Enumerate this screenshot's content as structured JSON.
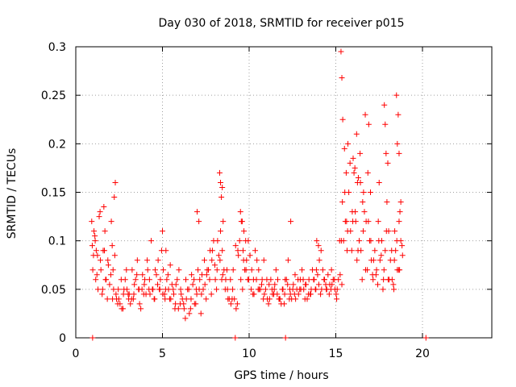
{
  "chart_data": {
    "type": "scatter",
    "title": "Day 030 of 2018, SRMTID for receiver p015",
    "xlabel": "GPS time / hours",
    "ylabel": "SRMTID / TECUs",
    "xlim": [
      0,
      24
    ],
    "ylim": [
      0,
      0.3
    ],
    "xticks": [
      0,
      5,
      10,
      15,
      20
    ],
    "yticks": [
      0,
      0.05,
      0.1,
      0.15,
      0.2,
      0.25,
      0.3
    ],
    "xtick_labels": [
      "0",
      "5",
      "10",
      "15",
      "20"
    ],
    "ytick_labels": [
      "0",
      "0.05",
      "0.1",
      "0.15",
      "0.2",
      "0.25",
      "0.3"
    ],
    "grid": true,
    "marker": "+",
    "series_color": "#ff0000",
    "series": [
      {
        "name": "SRMTID",
        "x": [
          0.95,
          1.05,
          1.15,
          1.25,
          1.35,
          1.45,
          1.55,
          1.65,
          1.75,
          1.85,
          1.95,
          2.05,
          2.15,
          2.25,
          2.35,
          2.45,
          2.55,
          2.65,
          2.75,
          2.85,
          2.95,
          3.05,
          3.15,
          3.25,
          3.35,
          3.45,
          3.55,
          3.65,
          3.75,
          3.85,
          3.95,
          4.05,
          4.15,
          4.25,
          4.35,
          4.45,
          4.55,
          4.65,
          4.75,
          4.85,
          4.95,
          5.05,
          5.15,
          5.25,
          5.35,
          5.45,
          5.55,
          5.65,
          5.75,
          5.85,
          5.95,
          6.05,
          6.15,
          6.25,
          6.35,
          6.45,
          6.55,
          6.65,
          6.75,
          6.85,
          6.95,
          7.05,
          7.15,
          7.25,
          7.35,
          7.45,
          7.55,
          7.65,
          7.75,
          7.85,
          7.95,
          8.05,
          8.15,
          8.25,
          8.35,
          8.45,
          8.55,
          8.65,
          8.75,
          8.85,
          8.95,
          9.05,
          9.15,
          9.25,
          9.35,
          9.45,
          9.55,
          9.65,
          9.75,
          9.85,
          9.95,
          10.05,
          10.15,
          10.25,
          10.35,
          10.45,
          10.55,
          10.65,
          10.75,
          10.85,
          10.95,
          11.05,
          11.15,
          11.25,
          11.35,
          11.45,
          11.55,
          11.65,
          11.75,
          11.85,
          11.95,
          12.05,
          12.15,
          12.25,
          12.35,
          12.45,
          12.55,
          12.65,
          12.75,
          12.85,
          12.95,
          13.05,
          13.15,
          13.25,
          13.35,
          13.45,
          13.55,
          13.65,
          13.75,
          13.85,
          13.95,
          14.05,
          14.15,
          14.25,
          14.35,
          14.45,
          14.55,
          14.65,
          14.75,
          14.85,
          14.95,
          15.05,
          15.15,
          15.25,
          15.35,
          15.45,
          15.55,
          15.65,
          15.75,
          15.85,
          15.95,
          16.05,
          16.15,
          16.25,
          16.35,
          16.45,
          16.55,
          16.65,
          16.75,
          16.85,
          16.95,
          17.05,
          17.15,
          17.25,
          17.35,
          17.45,
          17.55,
          17.65,
          17.75,
          17.85,
          17.95,
          18.05,
          18.15,
          18.25,
          18.35,
          18.45,
          18.55,
          18.65,
          18.75,
          18.85,
          0.98,
          1.12,
          1.28,
          1.42,
          1.58,
          1.72,
          1.88,
          2.02,
          2.18,
          2.32,
          2.48,
          2.62,
          2.78,
          2.92,
          3.08,
          3.22,
          3.38,
          3.52,
          3.68,
          3.82,
          3.98,
          4.12,
          4.28,
          4.42,
          4.58,
          4.72,
          4.88,
          5.02,
          5.18,
          5.32,
          5.48,
          5.62,
          5.78,
          5.92,
          6.08,
          6.22,
          6.38,
          6.52,
          6.68,
          6.82,
          6.98,
          7.12,
          7.28,
          7.42,
          7.58,
          7.72,
          7.88,
          8.02,
          8.18,
          8.32,
          8.48,
          8.62,
          8.78,
          8.92,
          9.08,
          9.22,
          9.38,
          9.52,
          9.68,
          9.82,
          9.98,
          10.12,
          10.28,
          10.42,
          10.58,
          10.72,
          10.88,
          11.02,
          11.18,
          11.32,
          11.48,
          11.62,
          11.78,
          11.92,
          12.08,
          12.22,
          12.38,
          12.52,
          12.68,
          12.82,
          12.98,
          13.12,
          13.28,
          13.42,
          13.58,
          13.72,
          13.88,
          14.02,
          14.18,
          14.32,
          14.48,
          14.62,
          14.78,
          14.92,
          15.08,
          15.22,
          15.38,
          15.52,
          15.68,
          15.82,
          15.98,
          16.12,
          16.28,
          16.42,
          16.58,
          16.72,
          16.88,
          17.02,
          17.18,
          17.32,
          17.48,
          17.62,
          17.78,
          17.92,
          18.08,
          18.22,
          18.38,
          18.52,
          18.68,
          18.82,
          1.02,
          1.22,
          1.52,
          1.82,
          2.12,
          2.42,
          2.72,
          3.02,
          3.32,
          3.62,
          3.92,
          4.22,
          4.52,
          4.82,
          5.12,
          5.42,
          5.72,
          6.02,
          6.32,
          6.62,
          6.92,
          7.22,
          7.52,
          7.82,
          8.12,
          8.42,
          8.72,
          9.02,
          9.32,
          9.62,
          9.92,
          10.22,
          10.52,
          10.82,
          11.12,
          11.42,
          11.72,
          12.02,
          12.32,
          12.62,
          12.92,
          13.22,
          13.52,
          13.82,
          14.12,
          14.42,
          14.72,
          15.02,
          15.32,
          15.62,
          15.92,
          16.22,
          16.52,
          16.82,
          17.12,
          17.42,
          17.72,
          18.02,
          18.32,
          18.62,
          0.92,
          1.1,
          1.18,
          1.4,
          1.62,
          1.68,
          2.1,
          2.22,
          2.28,
          5.0,
          5.2,
          7.0,
          7.1,
          8.3,
          8.35,
          8.4,
          8.45,
          8.5,
          9.5,
          9.6,
          9.7,
          9.8,
          12.4,
          13.9,
          14.0,
          15.3,
          15.35,
          15.4,
          15.5,
          15.6,
          15.7,
          16.0,
          16.1,
          16.2,
          16.3,
          16.4,
          16.6,
          16.7,
          16.9,
          17.0,
          17.5,
          17.8,
          17.85,
          17.9,
          18.0,
          18.4,
          18.5,
          18.55,
          18.6,
          18.65,
          18.7,
          18.75,
          0.97,
          9.2,
          12.1,
          20.2
        ],
        "y": [
          0.095,
          0.11,
          0.06,
          0.085,
          0.125,
          0.07,
          0.05,
          0.09,
          0.06,
          0.08,
          0.055,
          0.12,
          0.07,
          0.085,
          0.04,
          0.05,
          0.035,
          0.03,
          0.045,
          0.06,
          0.05,
          0.04,
          0.035,
          0.07,
          0.045,
          0.06,
          0.08,
          0.05,
          0.03,
          0.065,
          0.055,
          0.045,
          0.07,
          0.06,
          0.1,
          0.05,
          0.04,
          0.065,
          0.08,
          0.05,
          0.09,
          0.07,
          0.04,
          0.06,
          0.05,
          0.075,
          0.055,
          0.045,
          0.035,
          0.06,
          0.07,
          0.05,
          0.04,
          0.03,
          0.06,
          0.05,
          0.025,
          0.04,
          0.055,
          0.035,
          0.05,
          0.07,
          0.06,
          0.045,
          0.05,
          0.055,
          0.065,
          0.07,
          0.09,
          0.08,
          0.1,
          0.06,
          0.07,
          0.085,
          0.11,
          0.09,
          0.07,
          0.06,
          0.05,
          0.04,
          0.035,
          0.05,
          0.04,
          0.03,
          0.09,
          0.1,
          0.12,
          0.09,
          0.07,
          0.08,
          0.1,
          0.085,
          0.07,
          0.06,
          0.09,
          0.08,
          0.07,
          0.05,
          0.06,
          0.08,
          0.05,
          0.04,
          0.055,
          0.06,
          0.045,
          0.05,
          0.07,
          0.06,
          0.04,
          0.035,
          0.05,
          0.045,
          0.06,
          0.08,
          0.05,
          0.04,
          0.055,
          0.065,
          0.05,
          0.045,
          0.06,
          0.07,
          0.05,
          0.055,
          0.04,
          0.06,
          0.045,
          0.07,
          0.06,
          0.05,
          0.065,
          0.08,
          0.09,
          0.07,
          0.06,
          0.05,
          0.065,
          0.055,
          0.07,
          0.06,
          0.05,
          0.04,
          0.06,
          0.065,
          0.055,
          0.1,
          0.12,
          0.09,
          0.15,
          0.11,
          0.13,
          0.17,
          0.12,
          0.16,
          0.1,
          0.09,
          0.14,
          0.13,
          0.12,
          0.17,
          0.1,
          0.08,
          0.06,
          0.09,
          0.07,
          0.12,
          0.08,
          0.1,
          0.06,
          0.09,
          0.14,
          0.11,
          0.08,
          0.06,
          0.05,
          0.09,
          0.07,
          0.12,
          0.1,
          0.085,
          0.07,
          0.1,
          0.05,
          0.08,
          0.09,
          0.06,
          0.075,
          0.065,
          0.05,
          0.045,
          0.04,
          0.06,
          0.05,
          0.07,
          0.045,
          0.04,
          0.055,
          0.065,
          0.035,
          0.05,
          0.06,
          0.08,
          0.045,
          0.05,
          0.07,
          0.055,
          0.06,
          0.045,
          0.05,
          0.065,
          0.04,
          0.05,
          0.055,
          0.03,
          0.045,
          0.035,
          0.04,
          0.05,
          0.065,
          0.06,
          0.045,
          0.05,
          0.065,
          0.08,
          0.07,
          0.06,
          0.09,
          0.075,
          0.1,
          0.08,
          0.065,
          0.05,
          0.04,
          0.06,
          0.07,
          0.095,
          0.085,
          0.06,
          0.08,
          0.07,
          0.06,
          0.05,
          0.045,
          0.06,
          0.05,
          0.055,
          0.045,
          0.06,
          0.04,
          0.05,
          0.055,
          0.045,
          0.04,
          0.05,
          0.06,
          0.055,
          0.045,
          0.05,
          0.04,
          0.06,
          0.05,
          0.06,
          0.055,
          0.045,
          0.05,
          0.06,
          0.07,
          0.055,
          0.05,
          0.06,
          0.05,
          0.045,
          0.055,
          0.06,
          0.05,
          0.1,
          0.14,
          0.15,
          0.11,
          0.18,
          0.12,
          0.13,
          0.09,
          0.16,
          0.11,
          0.07,
          0.12,
          0.1,
          0.08,
          0.065,
          0.1,
          0.085,
          0.07,
          0.11,
          0.06,
          0.09,
          0.08,
          0.1,
          0.07,
          0.095,
          0.085,
          0.065,
          0.045,
          0.04,
          0.04,
          0.035,
          0.03,
          0.045,
          0.04,
          0.05,
          0.045,
          0.05,
          0.04,
          0.05,
          0.045,
          0.04,
          0.03,
          0.035,
          0.02,
          0.03,
          0.035,
          0.025,
          0.04,
          0.045,
          0.05,
          0.06,
          0.07,
          0.04,
          0.035,
          0.05,
          0.06,
          0.045,
          0.05,
          0.04,
          0.035,
          0.045,
          0.04,
          0.035,
          0.04,
          0.045,
          0.05,
          0.04,
          0.045,
          0.05,
          0.045,
          0.055,
          0.05,
          0.045,
          0.1,
          0.12,
          0.09,
          0.08,
          0.06,
          0.07,
          0.065,
          0.055,
          0.05,
          0.06,
          0.055,
          0.07,
          0.12,
          0.105,
          0.09,
          0.13,
          0.135,
          0.11,
          0.095,
          0.145,
          0.16,
          0.11,
          0.09,
          0.13,
          0.12,
          0.17,
          0.16,
          0.145,
          0.155,
          0.12,
          0.13,
          0.12,
          0.11,
          0.1,
          0.12,
          0.1,
          0.095,
          0.295,
          0.268,
          0.225,
          0.195,
          0.17,
          0.2,
          0.185,
          0.175,
          0.21,
          0.165,
          0.19,
          0.15,
          0.23,
          0.22,
          0.15,
          0.16,
          0.24,
          0.22,
          0.19,
          0.18,
          0.11,
          0.25,
          0.2,
          0.23,
          0.19,
          0.13,
          0.14,
          0.0,
          0.0,
          0.0,
          0.0
        ]
      }
    ]
  }
}
